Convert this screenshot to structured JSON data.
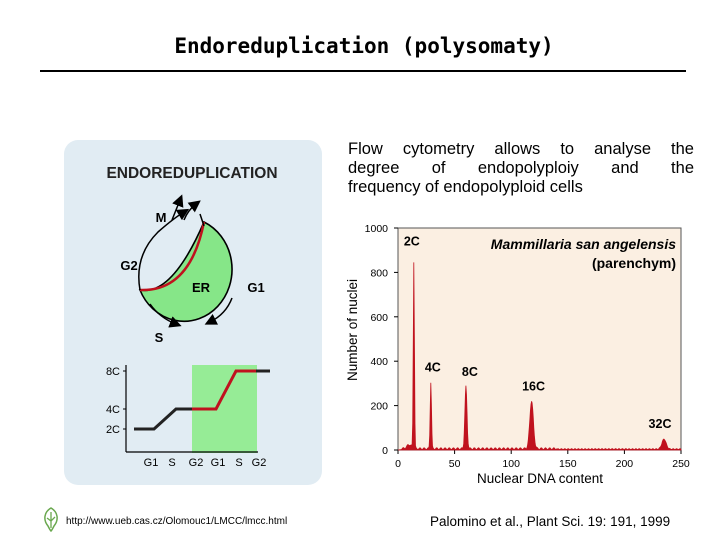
{
  "title": "Endoreduplication (polysomaty)",
  "cycle_panel": {
    "heading": "ENDOREDUPLICATION",
    "phases": {
      "m": "M",
      "g2": "G2",
      "er": "ER",
      "g1": "G1",
      "s": "S"
    },
    "step_chart": {
      "y_labels": [
        "8C",
        "4C",
        "2C"
      ],
      "x_labels": [
        "G1",
        "S",
        "G2",
        "G1",
        "S",
        "G2"
      ]
    }
  },
  "description": {
    "line1": "Flow cytometry allows to analyse the",
    "line2": "degree of endopolyploiy and the",
    "line3": "frequency of endopolyploid cells"
  },
  "histogram": {
    "species": "Mammillaria san angelensis",
    "tissue": "(parenchym)",
    "xlabel": "Nuclear DNA content",
    "ylabel": "Number of nuclei",
    "x_ticks": [
      "0",
      "50",
      "100",
      "150",
      "200",
      "250"
    ],
    "y_ticks": [
      "0",
      "200",
      "400",
      "600",
      "800",
      "1000"
    ],
    "peak_labels": [
      "2C",
      "4C",
      "8C",
      "16C",
      "32C"
    ]
  },
  "chart_data": {
    "type": "area",
    "title": "Mammillaria san angelensis (parenchym)",
    "xlabel": "Nuclear DNA content",
    "ylabel": "Number of nuclei",
    "xlim": [
      0,
      250
    ],
    "ylim": [
      0,
      1000
    ],
    "peaks": [
      {
        "label": "2C",
        "x": 14,
        "y": 840
      },
      {
        "label": "4C",
        "x": 29,
        "y": 300
      },
      {
        "label": "8C",
        "x": 60,
        "y": 280
      },
      {
        "label": "16C",
        "x": 118,
        "y": 215
      },
      {
        "label": "32C",
        "x": 235,
        "y": 45
      }
    ]
  },
  "colors": {
    "accent": "#c0121e",
    "phase_fill": "#86e688",
    "highlight": "#96ec96",
    "panel": "#e1ecf3"
  },
  "footer": {
    "url": "http://www.ueb.cas.cz/Olomouc1/LMCC/lmcc.html",
    "citation": "Palomino et al., Plant Sci. 19: 191, 1999"
  }
}
